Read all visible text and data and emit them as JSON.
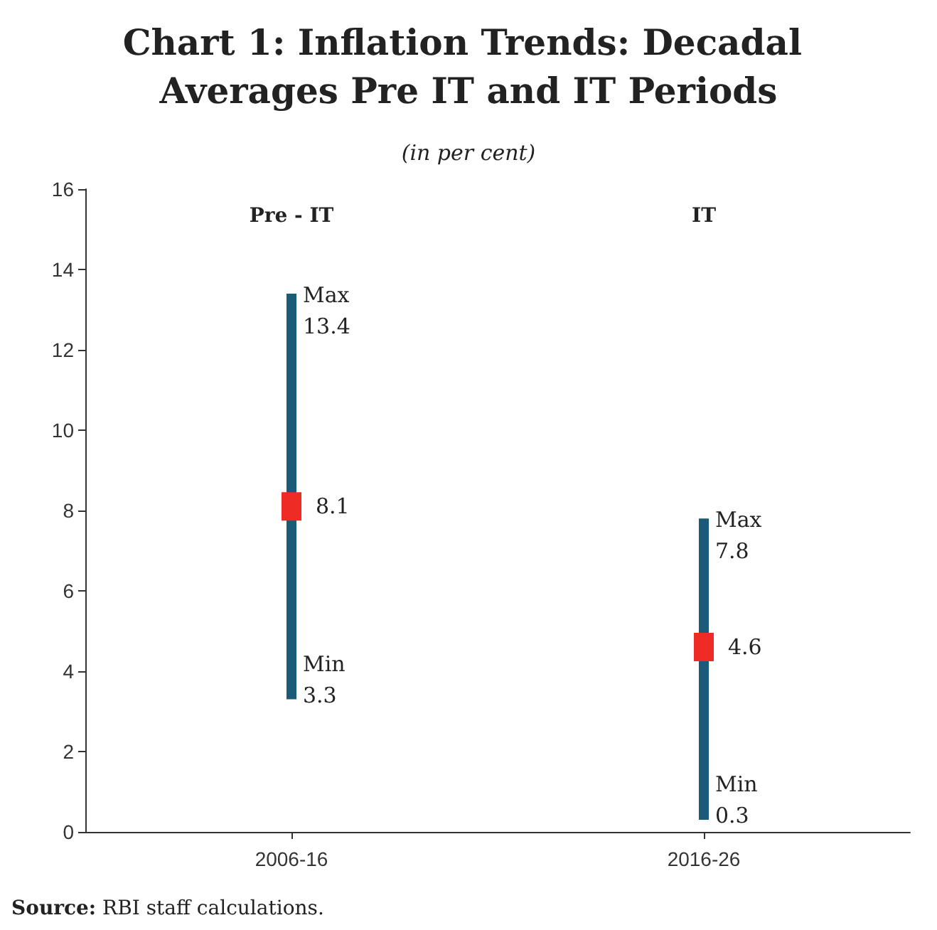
{
  "chart_data": {
    "type": "bar",
    "title": "Chart 1: Inflation Trends: Decadal Averages Pre IT and IT Periods",
    "subtitle": "(in per cent)",
    "categories": [
      "2006-16",
      "2016-26"
    ],
    "series": [
      {
        "type": "bar",
        "color": "#1b5a78",
        "base": [
          3.3,
          0.3
        ],
        "values": [
          10.1,
          7.5
        ]
      },
      {
        "type": "scatter",
        "color": "#ee2b24",
        "marker": "square",
        "x": [
          "2006-16",
          "2016-26"
        ],
        "values": [
          8.1,
          4.6
        ],
        "value_labels": [
          "8.1",
          "4.6"
        ]
      }
    ],
    "ylim": [
      0,
      16
    ],
    "yticks": [
      0,
      2,
      4,
      6,
      8,
      10,
      12,
      14,
      16
    ],
    "annotations": [
      "Pre - IT",
      "IT",
      {
        "text": "Max\n13.4",
        "x": "2006-16",
        "y": 13.4
      },
      {
        "text": "Min\n3.3",
        "x": "2006-16",
        "y": 3.3
      },
      {
        "text": "Max\n7.8",
        "x": "2016-26",
        "y": 7.8
      },
      {
        "text": "Min\n0.3",
        "x": "2016-26",
        "y": 0.3
      },
      "Source: RBI staff calculations."
    ]
  }
}
